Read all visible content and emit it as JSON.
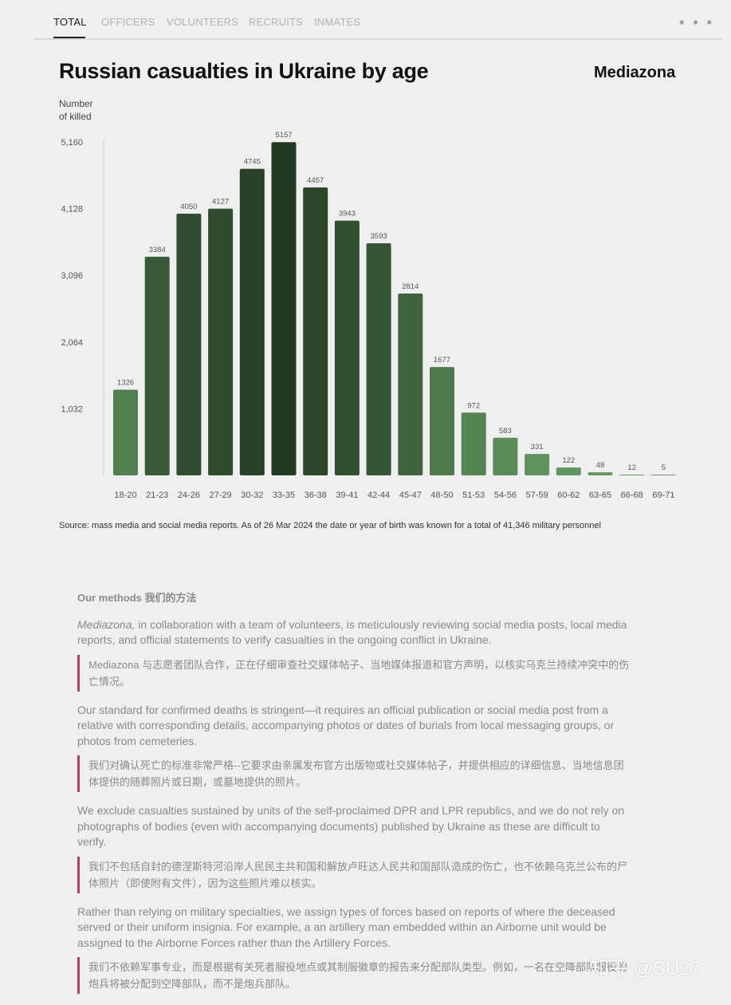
{
  "tabs": [
    "TOTAL",
    "OFFICERS",
    "VOLUNTEERS",
    "RECRUITS",
    "INMATES"
  ],
  "more_label": "• • •",
  "title": "Russian casualties in Ukraine by age",
  "brand": "Mediazona",
  "y_axis_label_line1": "Number",
  "y_axis_label_line2": "of killed",
  "chart_data": {
    "type": "bar",
    "title": "Russian casualties in Ukraine by age",
    "ylabel": "Number of killed",
    "xlabel": "",
    "categories": [
      "18-20",
      "21-23",
      "24-26",
      "27-29",
      "30-32",
      "33-35",
      "36-38",
      "39-41",
      "42-44",
      "45-47",
      "48-50",
      "51-53",
      "54-56",
      "57-59",
      "60-62",
      "63-65",
      "66-68",
      "69-71"
    ],
    "values": [
      1326,
      3384,
      4050,
      4127,
      4745,
      5157,
      4457,
      3943,
      3593,
      2814,
      1677,
      972,
      583,
      331,
      122,
      48,
      12,
      5
    ],
    "yticks": [
      "1,032",
      "2,064",
      "3,096",
      "4,128",
      "5,160"
    ],
    "ytick_values": [
      1032,
      2064,
      3096,
      4128,
      5160
    ],
    "ylim": [
      0,
      5160
    ],
    "grid": false,
    "colors": {
      "light": "#62975f",
      "dark": "#223a22"
    }
  },
  "source": "Source: mass media and social media reports. As of 26 Mar 2024 the date or year of birth was known for a total of 41,346 military personnel",
  "methods": {
    "heading": "Our methods 我们的方法",
    "p1_italic": "Mediazona,",
    "p1_rest": " in collaboration with a team of volunteers, is meticulously reviewing social media posts, local media reports, and official statements to verify casualties in the ongoing conflict in Ukraine.",
    "q1": "Mediazona 与志愿者团队合作，正在仔细审查社交媒体帖子、当地媒体报道和官方声明，以核实乌克兰持续冲突中的伤亡情况。",
    "p2": "Our standard for confirmed deaths is stringent—it requires an official publication or social media post from a relative with corresponding details, accompanying photos or dates of burials from local messaging groups, or photos from cemeteries.",
    "q2": "我们对确认死亡的标准非常严格--它要求由亲属发布官方出版物或社交媒体帖子，并提供相应的详细信息、当地信息团体提供的随葬照片或日期，或墓地提供的照片。",
    "p3": "We exclude casualties sustained by units of the self-proclaimed DPR and LPR republics, and we do not rely on photographs of bodies (even with accompanying documents) published by Ukraine as these are difficult to verify.",
    "q3": "我们不包括自封的德涅斯特河沿岸人民民主共和国和解放卢旺达人民共和国部队造成的伤亡，也不依赖乌克兰公布的尸体照片（即使附有文件），因为这些照片难以核实。",
    "p4": "Rather than relying on military specialties, we assign types of forces based on reports of where the deceased served or their uniform insignia. For example, a an artillery man embedded within an Airborne unit would be assigned to the Airborne Forces rather than the Artillery Forces.",
    "q4": "我们不依赖军事专业，而是根据有关死者服役地点或其制服徽章的报告来分配部队类型。例如，一名在空降部队服役的炮兵将被分配到空降部队，而不是炮兵部队。"
  },
  "watermark": "知乎 @SU27"
}
